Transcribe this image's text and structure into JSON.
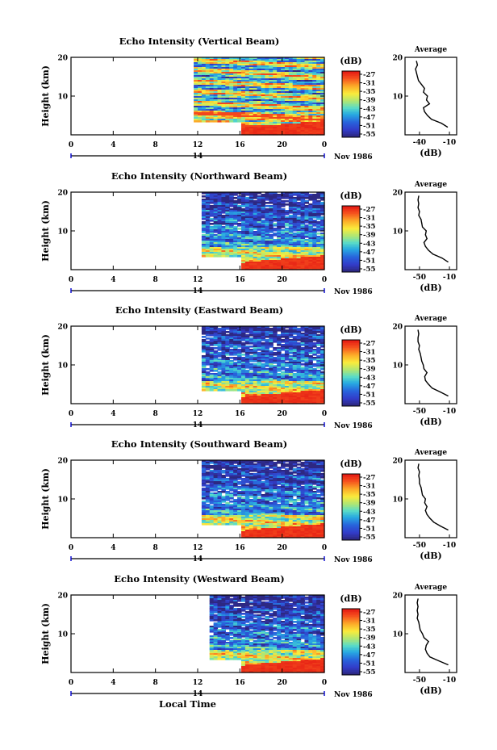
{
  "chart_data": [
    {
      "type": "heatmap",
      "title": "Echo Intensity (Vertical Beam)",
      "ylabel": "Height (km)",
      "yticks": [
        "20",
        "10"
      ],
      "ylim": [
        0,
        20
      ],
      "xticks": [
        "0",
        "4",
        "8",
        "12",
        "16",
        "20",
        "0"
      ],
      "date_tick": "14",
      "date_label": "Nov 1986",
      "xlabel": "",
      "colorbar": {
        "units": "(dB)",
        "labels": [
          "-27",
          "-31",
          "-35",
          "-39",
          "-43",
          "-47",
          "-51",
          "-55"
        ]
      },
      "data_start_hour": 11.6,
      "high_start_hour": 16,
      "profile": {
        "title": "Average",
        "xlabel": "(dB)",
        "xticks": [
          "-40",
          "-10"
        ],
        "yticks": [
          "20",
          "10"
        ],
        "heights": [
          2,
          3,
          4,
          5,
          6,
          7,
          8,
          9,
          10,
          11,
          12,
          13,
          14,
          15,
          16,
          17,
          18,
          19
        ],
        "values": [
          -12,
          -18,
          -28,
          -32,
          -35,
          -36,
          -30,
          -33,
          -32,
          -36,
          -35,
          -38,
          -41,
          -42,
          -43,
          -44,
          -42,
          -43
        ]
      }
    },
    {
      "type": "heatmap",
      "title": "Echo Intensity (Northward Beam)",
      "ylabel": "Height (km)",
      "yticks": [
        "20",
        "10"
      ],
      "ylim": [
        0,
        20
      ],
      "xticks": [
        "0",
        "4",
        "8",
        "12",
        "16",
        "20",
        "0"
      ],
      "date_tick": "14",
      "date_label": "Nov 1986",
      "xlabel": "",
      "colorbar": {
        "units": "(dB)",
        "labels": [
          "-27",
          "-31",
          "-35",
          "-39",
          "-43",
          "-47",
          "-51",
          "-55"
        ]
      },
      "data_start_hour": 12.4,
      "high_start_hour": 16,
      "profile": {
        "title": "Average",
        "xlabel": "(dB)",
        "xticks": [
          "-50",
          "-10"
        ],
        "yticks": [
          "20",
          "10"
        ],
        "heights": [
          2,
          3,
          4,
          5,
          6,
          7,
          8,
          9,
          10,
          11,
          12,
          13,
          14,
          15,
          16,
          17,
          18,
          19
        ],
        "values": [
          -12,
          -20,
          -32,
          -38,
          -42,
          -44,
          -40,
          -42,
          -41,
          -46,
          -47,
          -48,
          -51,
          -50,
          -52,
          -51,
          -52,
          -51
        ]
      }
    },
    {
      "type": "heatmap",
      "title": "Echo Intensity (Eastward Beam)",
      "ylabel": "Height (km)",
      "yticks": [
        "20",
        "10"
      ],
      "ylim": [
        0,
        20
      ],
      "xticks": [
        "0",
        "4",
        "8",
        "12",
        "16",
        "20",
        "0"
      ],
      "date_tick": "14",
      "date_label": "Nov 1986",
      "xlabel": "",
      "colorbar": {
        "units": "(dB)",
        "labels": [
          "-27",
          "-31",
          "-35",
          "-39",
          "-43",
          "-47",
          "-51",
          "-55"
        ]
      },
      "data_start_hour": 12.4,
      "high_start_hour": 16,
      "profile": {
        "title": "Average",
        "xlabel": "(dB)",
        "xticks": [
          "-50",
          "-10"
        ],
        "yticks": [
          "20",
          "10"
        ],
        "heights": [
          2,
          3,
          4,
          5,
          6,
          7,
          8,
          9,
          10,
          11,
          12,
          13,
          14,
          15,
          16,
          17,
          18,
          19
        ],
        "values": [
          -12,
          -22,
          -33,
          -38,
          -42,
          -43,
          -40,
          -44,
          -45,
          -47,
          -48,
          -49,
          -51,
          -50,
          -52,
          -52,
          -51,
          -52
        ]
      }
    },
    {
      "type": "heatmap",
      "title": "Echo Intensity (Southward Beam)",
      "ylabel": "Height (km)",
      "yticks": [
        "20",
        "10"
      ],
      "ylim": [
        0,
        20
      ],
      "xticks": [
        "0",
        "4",
        "8",
        "12",
        "16",
        "20",
        "0"
      ],
      "date_tick": "14",
      "date_label": "Nov 1986",
      "xlabel": "",
      "colorbar": {
        "units": "(dB)",
        "labels": [
          "-27",
          "-31",
          "-35",
          "-39",
          "-43",
          "-47",
          "-51",
          "-55"
        ]
      },
      "data_start_hour": 12.4,
      "high_start_hour": 16,
      "profile": {
        "title": "Average",
        "xlabel": "(dB)",
        "xticks": [
          "-50",
          "-10"
        ],
        "yticks": [
          "20",
          "10"
        ],
        "heights": [
          2,
          3,
          4,
          5,
          6,
          7,
          8,
          9,
          10,
          11,
          12,
          13,
          14,
          15,
          16,
          17,
          18,
          19
        ],
        "values": [
          -12,
          -22,
          -31,
          -36,
          -40,
          -42,
          -40,
          -43,
          -42,
          -46,
          -47,
          -48,
          -50,
          -50,
          -51,
          -50,
          -52,
          -51
        ]
      }
    },
    {
      "type": "heatmap",
      "title": "Echo Intensity (Westward Beam)",
      "ylabel": "Height (km)",
      "yticks": [
        "20",
        "10"
      ],
      "ylim": [
        0,
        20
      ],
      "xticks": [
        "0",
        "4",
        "8",
        "12",
        "16",
        "20",
        "0"
      ],
      "date_tick": "14",
      "date_label": "Nov 1986",
      "xlabel": "Local Time",
      "colorbar": {
        "units": "(dB)",
        "labels": [
          "-27",
          "-31",
          "-35",
          "-39",
          "-43",
          "-47",
          "-51",
          "-55"
        ]
      },
      "data_start_hour": 13.2,
      "high_start_hour": 16,
      "profile": {
        "title": "Average",
        "xlabel": "(dB)",
        "xticks": [
          "-50",
          "-10"
        ],
        "yticks": [
          "20",
          "10"
        ],
        "heights": [
          2,
          3,
          4,
          5,
          6,
          7,
          8,
          9,
          10,
          11,
          12,
          13,
          14,
          15,
          16,
          17,
          18,
          19
        ],
        "values": [
          -12,
          -24,
          -36,
          -40,
          -42,
          -41,
          -38,
          -44,
          -46,
          -49,
          -50,
          -51,
          -53,
          -52,
          -53,
          -52,
          -53,
          -52
        ]
      }
    }
  ]
}
